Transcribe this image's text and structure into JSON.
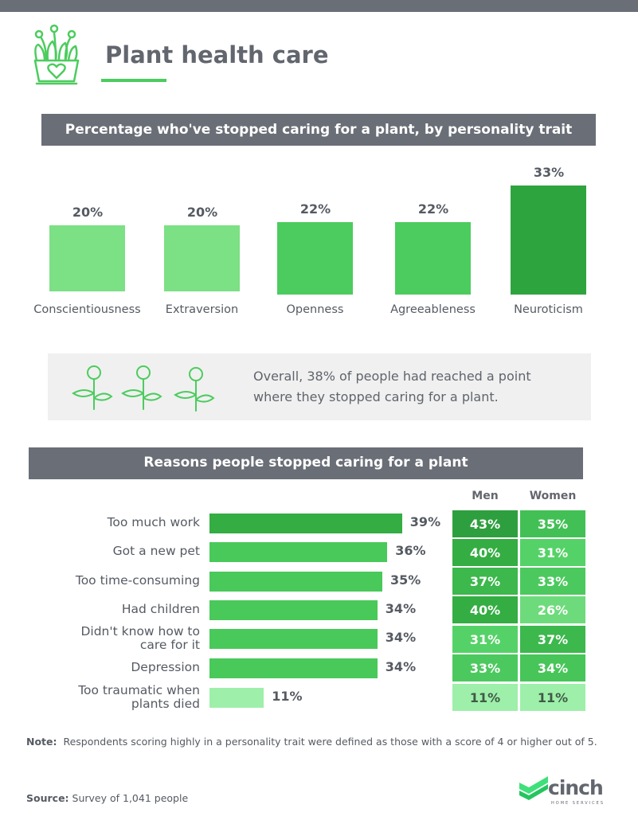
{
  "title": "Plant health care",
  "chart_data": [
    {
      "type": "bar",
      "title": "Percentage who've stopped caring for a plant, by personality trait",
      "categories": [
        "Conscientiousness",
        "Extraversion",
        "Openness",
        "Agreeableness",
        "Neuroticism"
      ],
      "values": [
        20,
        20,
        22,
        22,
        33
      ],
      "value_labels": [
        "20%",
        "20%",
        "22%",
        "22%",
        "33%"
      ],
      "colors": [
        "#7ce085",
        "#7ce085",
        "#4ccc5e",
        "#4ccc5e",
        "#2ea43f"
      ],
      "grid": false
    },
    {
      "type": "bar",
      "orientation": "horizontal",
      "title": "Reasons people stopped caring for a plant",
      "categories": [
        "Too much work",
        "Got a new pet",
        "Too time-consuming",
        "Had children",
        "Didn't know how to care for it",
        "Depression",
        "Too traumatic when plants died"
      ],
      "values": [
        39,
        36,
        35,
        34,
        34,
        34,
        11
      ],
      "value_labels": [
        "39%",
        "36%",
        "35%",
        "34%",
        "34%",
        "34%",
        "11%"
      ],
      "colors": [
        "#34ad43",
        "#49c95a",
        "#49c95a",
        "#49c95a",
        "#49c95a",
        "#49c95a",
        "#9eefaa"
      ],
      "grid": false
    },
    {
      "type": "table",
      "columns": [
        "Men",
        "Women"
      ],
      "rows": [
        {
          "men": "43%",
          "women": "35%",
          "men_color": "#2e9f3e",
          "women_color": "#43c055"
        },
        {
          "men": "40%",
          "women": "31%",
          "men_color": "#34ad43",
          "women_color": "#55d267"
        },
        {
          "men": "37%",
          "women": "33%",
          "men_color": "#3cb84d",
          "women_color": "#4cc95e"
        },
        {
          "men": "40%",
          "women": "26%",
          "men_color": "#34ad43",
          "women_color": "#6ddb7b"
        },
        {
          "men": "31%",
          "women": "37%",
          "men_color": "#55d267",
          "women_color": "#3cb84d"
        },
        {
          "men": "33%",
          "women": "34%",
          "men_color": "#4cc95e",
          "women_color": "#47c559"
        },
        {
          "men": "11%",
          "women": "11%",
          "men_color": "#9eefaa",
          "women_color": "#9eefaa"
        }
      ]
    }
  ],
  "callout": "Overall, 38% of people had reached a point where they stopped caring for a plant.",
  "note_label": "Note:",
  "note": "Respondents scoring highly in a personality trait were defined as those with a score of 4 or higher out of 5.",
  "source_label": "Source:",
  "source": "Survey of 1,041 people",
  "brand": {
    "name": "cinch",
    "tagline": "HOME SERVICES"
  },
  "accent": "#4ccc5e"
}
